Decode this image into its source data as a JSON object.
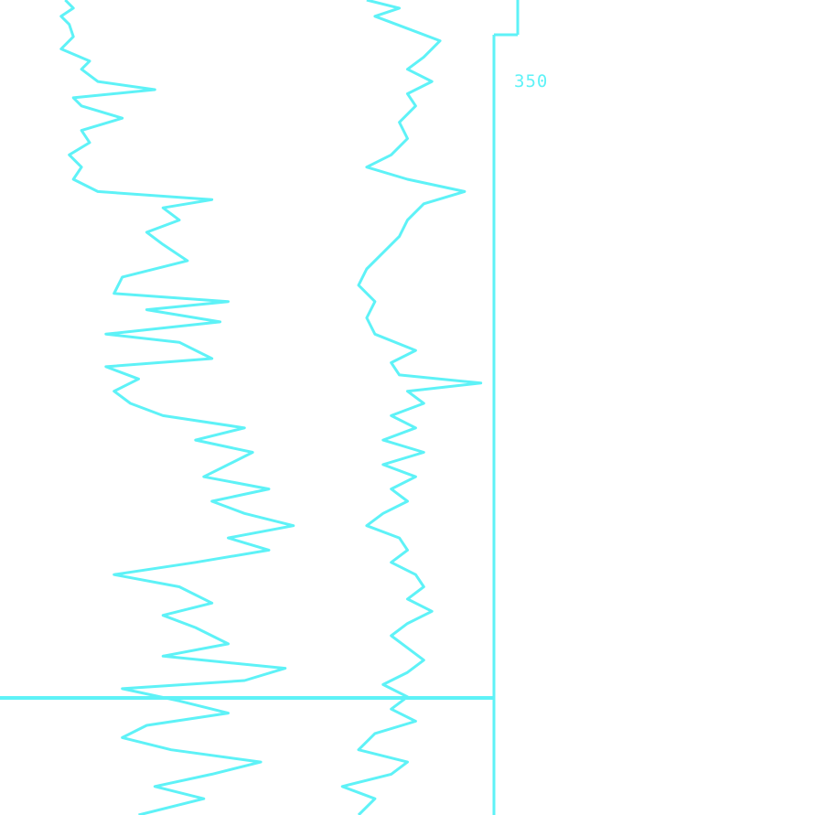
{
  "colors": {
    "trace": "#5ef2f7",
    "background": "#ffffff"
  },
  "chart_data": {
    "type": "line",
    "title": "",
    "xlabel": "",
    "ylabel": "",
    "grid": false,
    "legend": "none",
    "tick_labels": [
      "350",
      "",
      ""
    ],
    "series": [
      {
        "track": "left",
        "description_only": false,
        "points": [
          [
            0.08,
            0.0
          ],
          [
            0.09,
            0.01
          ],
          [
            0.075,
            0.02
          ],
          [
            0.085,
            0.03
          ],
          [
            0.09,
            0.045
          ],
          [
            0.075,
            0.06
          ],
          [
            0.11,
            0.075
          ],
          [
            0.1,
            0.085
          ],
          [
            0.12,
            0.1
          ],
          [
            0.19,
            0.11
          ],
          [
            0.09,
            0.12
          ],
          [
            0.1,
            0.13
          ],
          [
            0.15,
            0.145
          ],
          [
            0.1,
            0.16
          ],
          [
            0.11,
            0.175
          ],
          [
            0.085,
            0.19
          ],
          [
            0.1,
            0.205
          ],
          [
            0.09,
            0.22
          ],
          [
            0.12,
            0.235
          ],
          [
            0.26,
            0.245
          ],
          [
            0.2,
            0.255
          ],
          [
            0.22,
            0.27
          ],
          [
            0.18,
            0.285
          ],
          [
            0.2,
            0.3
          ],
          [
            0.23,
            0.32
          ],
          [
            0.15,
            0.34
          ],
          [
            0.14,
            0.36
          ],
          [
            0.28,
            0.37
          ],
          [
            0.18,
            0.38
          ],
          [
            0.27,
            0.395
          ],
          [
            0.13,
            0.41
          ],
          [
            0.22,
            0.42
          ],
          [
            0.26,
            0.44
          ],
          [
            0.13,
            0.45
          ],
          [
            0.17,
            0.465
          ],
          [
            0.14,
            0.48
          ],
          [
            0.16,
            0.495
          ],
          [
            0.2,
            0.51
          ],
          [
            0.3,
            0.525
          ],
          [
            0.24,
            0.54
          ],
          [
            0.31,
            0.555
          ],
          [
            0.28,
            0.57
          ],
          [
            0.25,
            0.585
          ],
          [
            0.33,
            0.6
          ],
          [
            0.26,
            0.615
          ],
          [
            0.3,
            0.63
          ],
          [
            0.36,
            0.645
          ],
          [
            0.28,
            0.66
          ],
          [
            0.33,
            0.675
          ],
          [
            0.24,
            0.69
          ],
          [
            0.14,
            0.705
          ],
          [
            0.22,
            0.72
          ],
          [
            0.26,
            0.74
          ],
          [
            0.2,
            0.755
          ],
          [
            0.24,
            0.77
          ],
          [
            0.28,
            0.79
          ],
          [
            0.2,
            0.805
          ],
          [
            0.35,
            0.82
          ],
          [
            0.3,
            0.835
          ],
          [
            0.15,
            0.845
          ],
          [
            0.22,
            0.86
          ],
          [
            0.28,
            0.875
          ],
          [
            0.18,
            0.89
          ],
          [
            0.15,
            0.905
          ],
          [
            0.21,
            0.92
          ],
          [
            0.32,
            0.935
          ],
          [
            0.26,
            0.95
          ],
          [
            0.19,
            0.965
          ],
          [
            0.25,
            0.98
          ],
          [
            0.17,
            1.0
          ]
        ]
      },
      {
        "track": "right",
        "points": [
          [
            0.45,
            0.0
          ],
          [
            0.49,
            0.01
          ],
          [
            0.46,
            0.02
          ],
          [
            0.5,
            0.035
          ],
          [
            0.54,
            0.05
          ],
          [
            0.52,
            0.07
          ],
          [
            0.5,
            0.085
          ],
          [
            0.53,
            0.1
          ],
          [
            0.5,
            0.115
          ],
          [
            0.51,
            0.13
          ],
          [
            0.49,
            0.15
          ],
          [
            0.5,
            0.17
          ],
          [
            0.48,
            0.19
          ],
          [
            0.45,
            0.205
          ],
          [
            0.5,
            0.22
          ],
          [
            0.57,
            0.235
          ],
          [
            0.52,
            0.25
          ],
          [
            0.5,
            0.27
          ],
          [
            0.49,
            0.29
          ],
          [
            0.47,
            0.31
          ],
          [
            0.45,
            0.33
          ],
          [
            0.44,
            0.35
          ],
          [
            0.46,
            0.37
          ],
          [
            0.45,
            0.39
          ],
          [
            0.46,
            0.41
          ],
          [
            0.51,
            0.43
          ],
          [
            0.48,
            0.445
          ],
          [
            0.49,
            0.46
          ],
          [
            0.59,
            0.47
          ],
          [
            0.5,
            0.48
          ],
          [
            0.52,
            0.495
          ],
          [
            0.48,
            0.51
          ],
          [
            0.51,
            0.525
          ],
          [
            0.47,
            0.54
          ],
          [
            0.52,
            0.555
          ],
          [
            0.47,
            0.57
          ],
          [
            0.51,
            0.585
          ],
          [
            0.48,
            0.6
          ],
          [
            0.5,
            0.615
          ],
          [
            0.47,
            0.63
          ],
          [
            0.45,
            0.645
          ],
          [
            0.49,
            0.66
          ],
          [
            0.5,
            0.675
          ],
          [
            0.48,
            0.69
          ],
          [
            0.51,
            0.705
          ],
          [
            0.52,
            0.72
          ],
          [
            0.5,
            0.735
          ],
          [
            0.53,
            0.75
          ],
          [
            0.5,
            0.765
          ],
          [
            0.48,
            0.78
          ],
          [
            0.5,
            0.795
          ],
          [
            0.52,
            0.81
          ],
          [
            0.5,
            0.825
          ],
          [
            0.47,
            0.84
          ],
          [
            0.5,
            0.855
          ],
          [
            0.48,
            0.87
          ],
          [
            0.51,
            0.885
          ],
          [
            0.46,
            0.9
          ],
          [
            0.44,
            0.92
          ],
          [
            0.5,
            0.935
          ],
          [
            0.48,
            0.95
          ],
          [
            0.42,
            0.965
          ],
          [
            0.46,
            0.98
          ],
          [
            0.44,
            1.0
          ]
        ]
      }
    ]
  }
}
